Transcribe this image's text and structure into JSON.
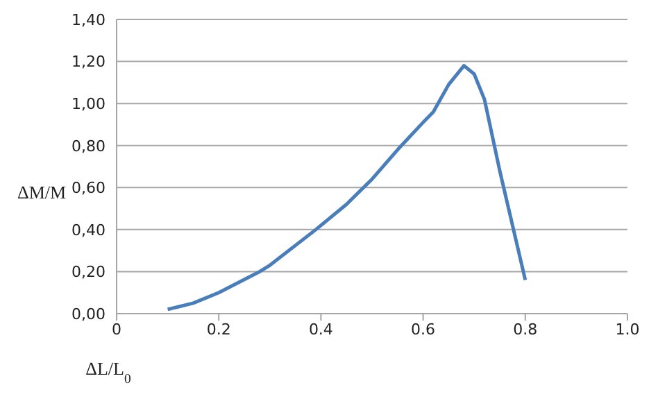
{
  "chart_data": {
    "type": "line",
    "xlabel": "ΔL/L$_{0}$",
    "ylabel": "ΔM/M",
    "series": [
      {
        "color": "#4a7ebb",
        "x": [
          0.1,
          0.15,
          0.2,
          0.28,
          0.3,
          0.39,
          0.45,
          0.5,
          0.55,
          0.6,
          0.62,
          0.65,
          0.68,
          0.7,
          0.72,
          0.75,
          0.8
        ],
        "values": [
          0.02,
          0.05,
          0.1,
          0.2,
          0.23,
          0.4,
          0.52,
          0.64,
          0.78,
          0.91,
          0.96,
          1.09,
          1.18,
          1.14,
          1.02,
          0.68,
          0.16
        ]
      }
    ],
    "xlim": [
      0,
      1
    ],
    "ylim": [
      0,
      1.4
    ],
    "xticks": [
      0,
      0.2,
      0.4,
      0.6,
      0.8,
      {
        "value": 1,
        "label": "1.0"
      }
    ],
    "yticks": [
      {
        "value": 0,
        "label": "0,00"
      },
      {
        "value": 0.2,
        "label": "0,20"
      },
      {
        "value": 0.4,
        "label": "0,40"
      },
      {
        "value": 0.6,
        "label": "0,60"
      },
      {
        "value": 0.8,
        "label": "0,80"
      },
      {
        "value": 1,
        "label": "1,00"
      },
      {
        "value": 1.2,
        "label": "1,20"
      },
      {
        "value": 1.4,
        "label": "1,40"
      }
    ],
    "grid": "y",
    "marker": "none",
    "line_style": "solid"
  }
}
